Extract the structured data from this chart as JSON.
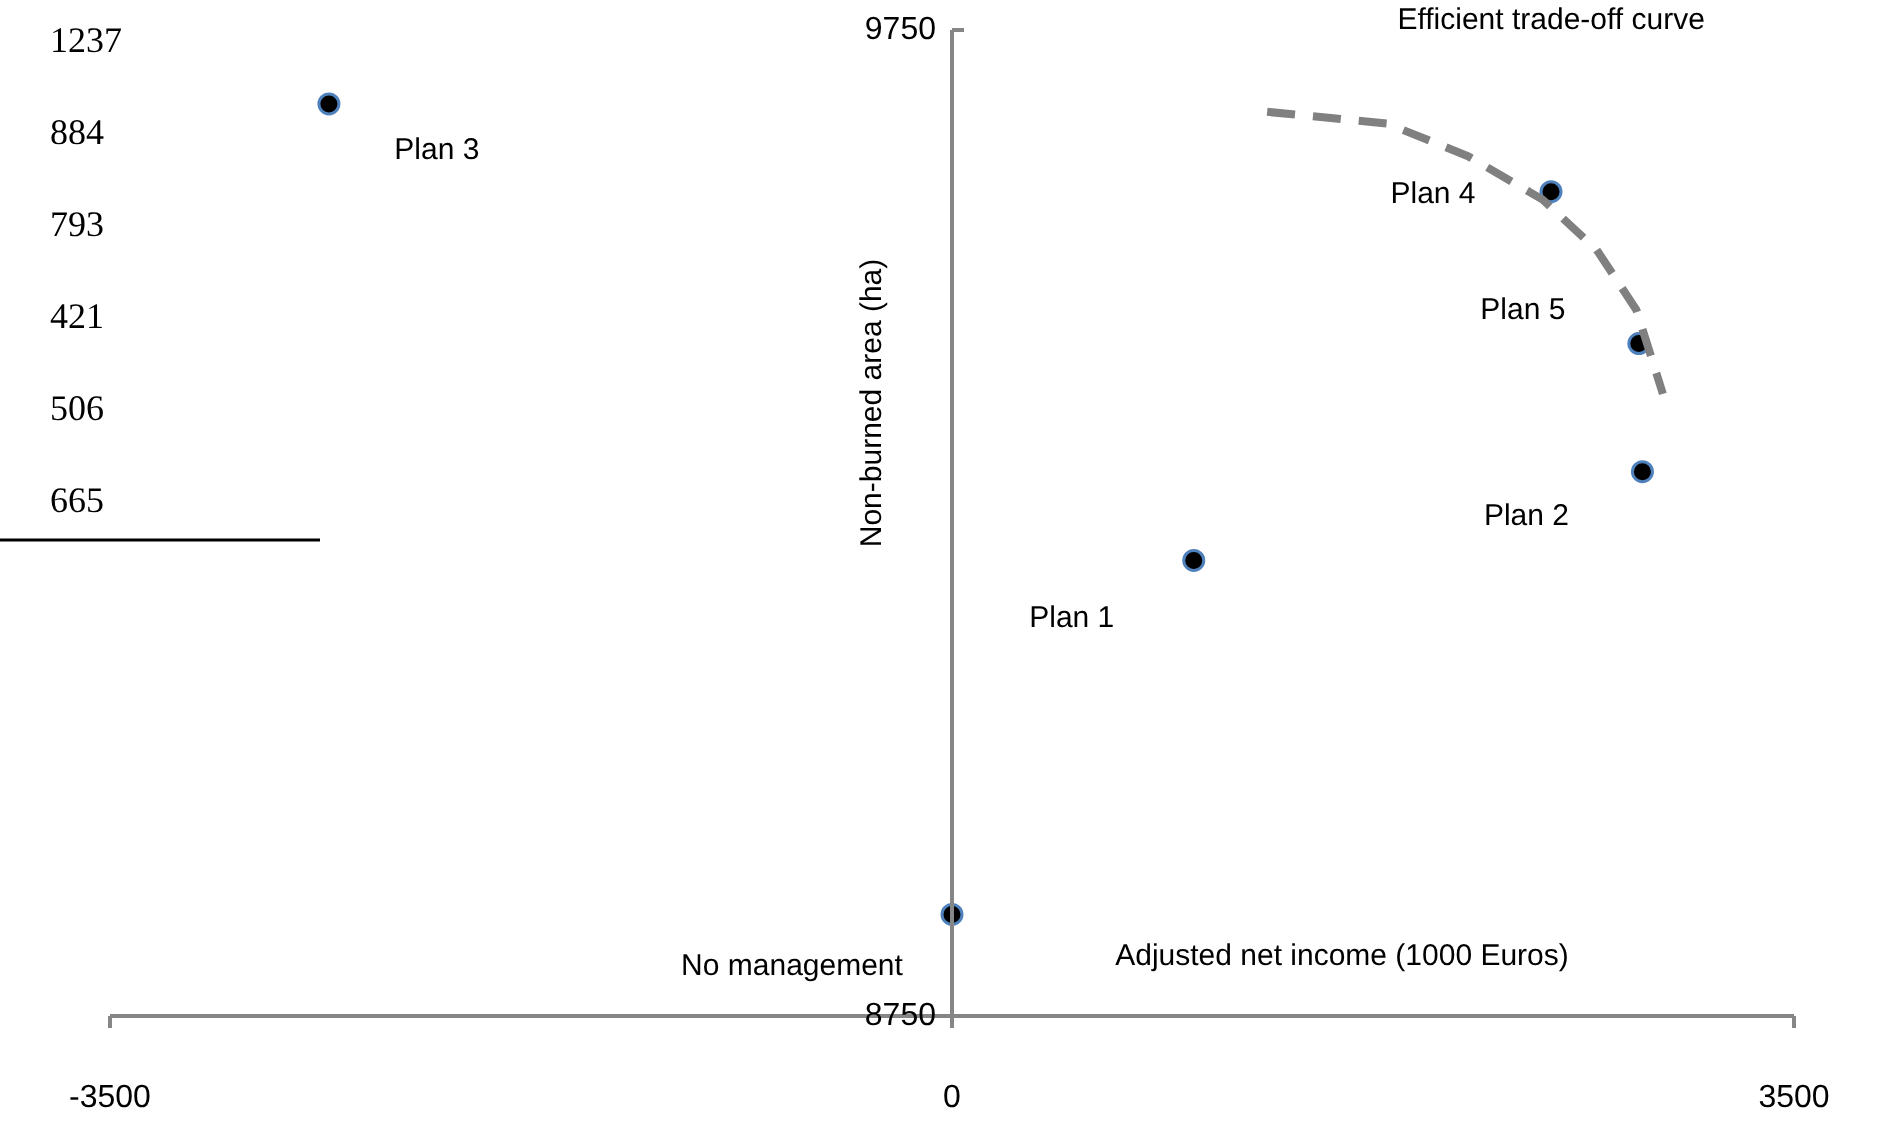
{
  "chart_data": {
    "type": "scatter",
    "xlabel": "Adjusted net income (1000 Euros)",
    "ylabel": "Non-burned area (ha)",
    "xlim": [
      -3500,
      3500
    ],
    "xticks": [
      -3500,
      0,
      3500
    ],
    "ylim": [
      8750,
      9750
    ],
    "yticks": [
      8750,
      9750
    ],
    "marker": "circle",
    "series": [
      {
        "color": "#000000",
        "x": [
          0,
          1005,
          2870,
          -2590,
          2490,
          2855
        ],
        "values": [
          8853,
          9212,
          9302,
          9675,
          9586,
          9432
        ]
      },
      {
        "type": "line",
        "name": "Efficient trade-off curve",
        "color": "#808080",
        "line_style": "dashed",
        "marker": "none",
        "x": [
          1310,
          1810,
          2145,
          2455,
          2680,
          2845,
          2955
        ],
        "values": [
          9667,
          9655,
          9622,
          9578,
          9527,
          9466,
          9381
        ]
      }
    ],
    "annotations": [
      {
        "text": "No management",
        "x": 0,
        "y": 8853
      },
      {
        "text": "Plan 1",
        "x": 1005,
        "y": 9212
      },
      {
        "text": "Plan 2",
        "x": 2870,
        "y": 9302
      },
      {
        "text": "Plan 3",
        "x": -2590,
        "y": 9675
      },
      {
        "text": "Plan 4",
        "x": 2490,
        "y": 9586
      },
      {
        "text": "Plan 5",
        "x": 2855,
        "y": 9432
      },
      "1237",
      "884",
      "793",
      "421",
      "506",
      "665"
    ]
  }
}
